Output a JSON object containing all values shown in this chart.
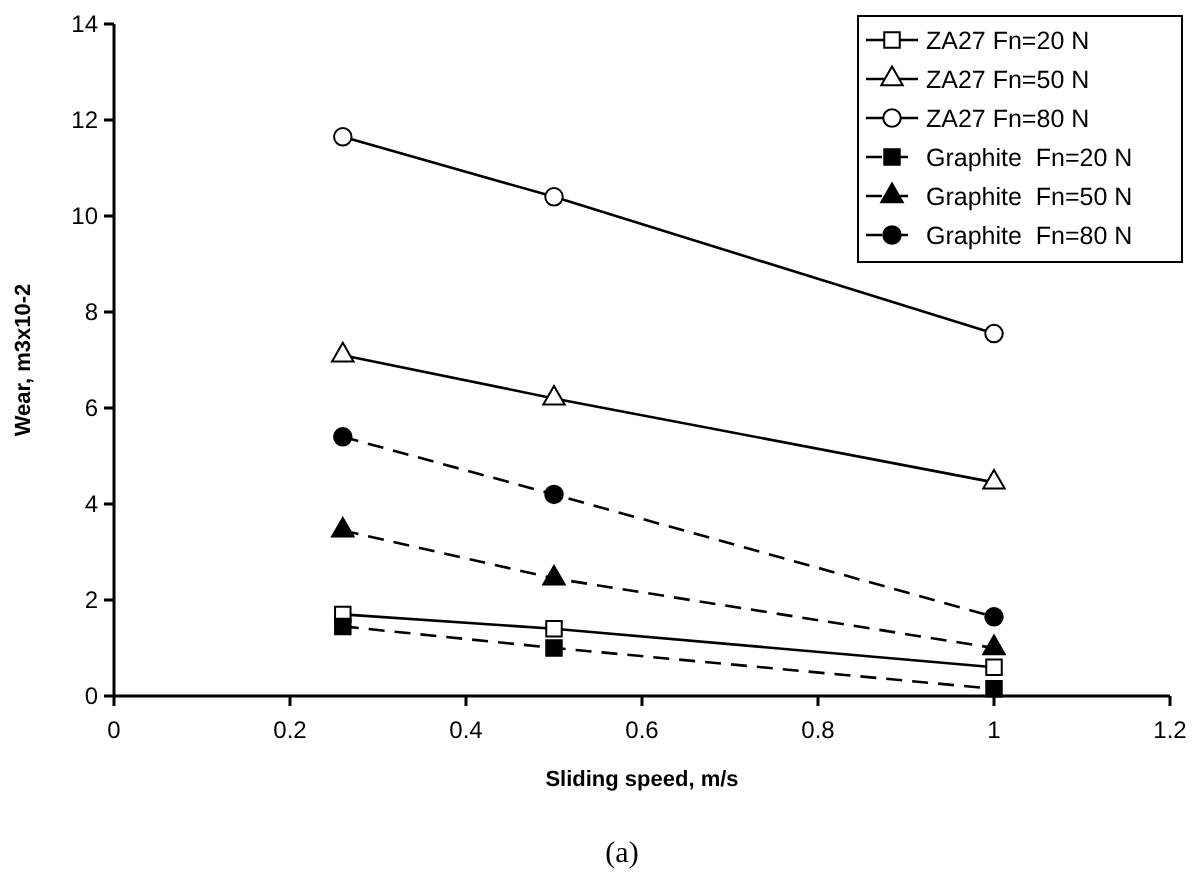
{
  "chart_data": {
    "type": "line",
    "xlabel": "Sliding speed, m/s",
    "ylabel": "Wear, m3x10-2",
    "annotations": [
      "(a)"
    ],
    "xlim": [
      0,
      1.2
    ],
    "xticks": [
      0,
      0.2,
      0.4,
      0.6,
      0.8,
      1,
      1.2
    ],
    "ylim": [
      0,
      14
    ],
    "yticks": [
      0,
      2,
      4,
      6,
      8,
      10,
      12,
      14
    ],
    "legend": "top right",
    "grid": false,
    "x": [
      0.26,
      0.5,
      1
    ],
    "series": [
      {
        "name": "ZA27 Fn=20 N",
        "color": "#000000",
        "marker": "square",
        "line_style": "solid",
        "values": [
          1.7,
          1.4,
          0.6
        ]
      },
      {
        "name": "ZA27 Fn=50 N",
        "color": "#000000",
        "marker": "triangle",
        "line_style": "solid",
        "values": [
          7.1,
          6.2,
          4.45
        ]
      },
      {
        "name": "ZA27 Fn=80 N",
        "color": "#000000",
        "marker": "circle",
        "line_style": "solid",
        "values": [
          11.65,
          10.4,
          7.55
        ]
      },
      {
        "name": "Graphite  Fn=20 N",
        "color": "#000000",
        "marker": "square",
        "line_style": "dashed",
        "values": [
          1.45,
          1.0,
          0.15
        ]
      },
      {
        "name": "Graphite  Fn=50 N",
        "color": "#000000",
        "marker": "triangle",
        "line_style": "dashed",
        "values": [
          3.45,
          2.45,
          1.0
        ]
      },
      {
        "name": "Graphite  Fn=80 N",
        "color": "#000000",
        "marker": "circle",
        "line_style": "dashed",
        "values": [
          5.4,
          4.2,
          1.65
        ]
      }
    ]
  }
}
